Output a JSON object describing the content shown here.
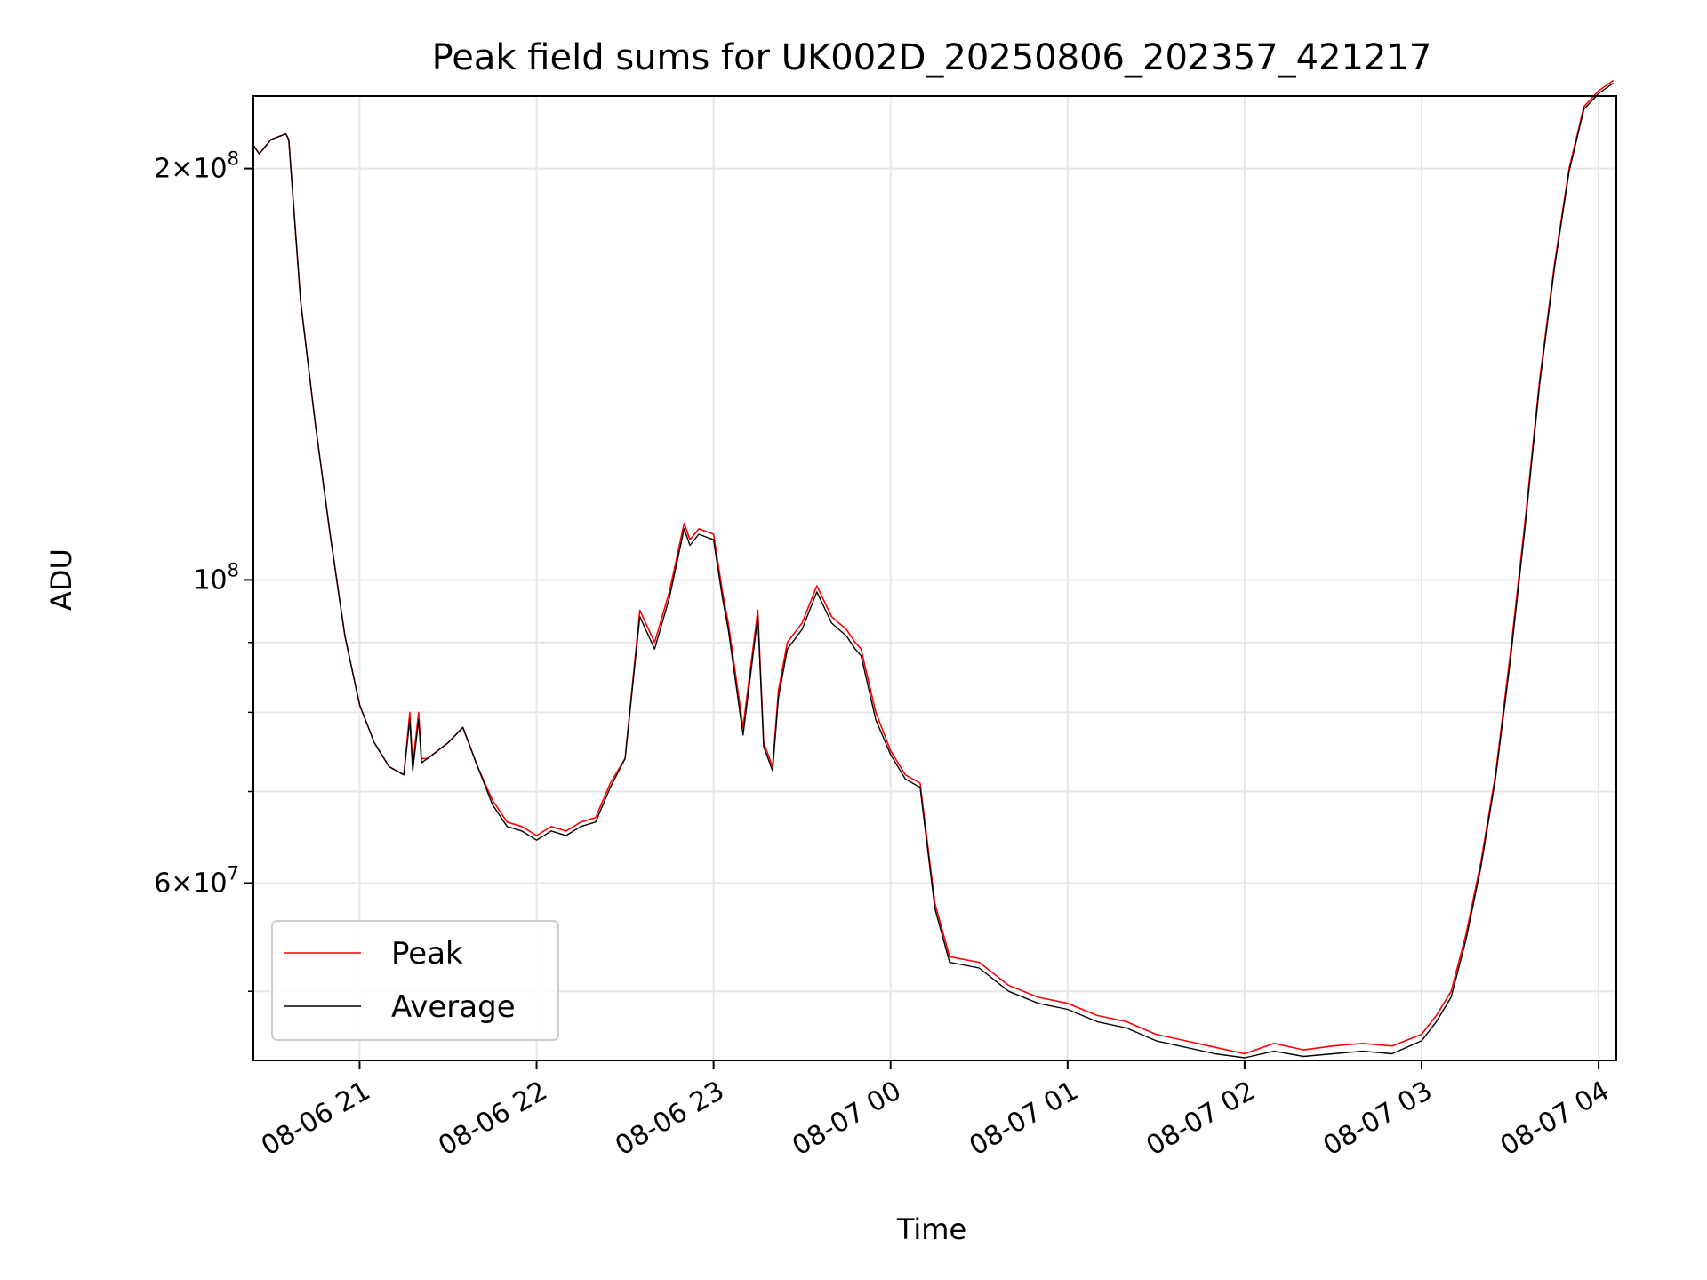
{
  "chart_data": {
    "type": "line",
    "title": "Peak field sums for UK002D_20250806_202357_421217",
    "xlabel": "Time",
    "ylabel": "ADU",
    "y_scale": "log",
    "ylim": [
      44500000,
      226000000
    ],
    "xlim": [
      "2025-08-06 20:24",
      "2025-08-07 04:06"
    ],
    "x_ticks": [
      "08-06 21",
      "08-06 22",
      "08-06 23",
      "08-07 00",
      "08-07 01",
      "08-07 02",
      "08-07 03",
      "08-07 04"
    ],
    "y_ticks_major": [
      {
        "value": 60000000,
        "mantissa": "6",
        "exponent": "7"
      },
      {
        "value": 100000000,
        "mantissa": "",
        "exponent": "8"
      },
      {
        "value": 200000000,
        "mantissa": "2",
        "exponent": "8"
      }
    ],
    "y_ticks_minor": [
      50000000,
      70000000,
      80000000,
      90000000
    ],
    "grid": true,
    "legend_position": "lower-left",
    "series": [
      {
        "name": "Peak",
        "color": "#ff0000",
        "x": [
          "2025-08-06 20:24",
          "2025-08-06 20:26",
          "2025-08-06 20:30",
          "2025-08-06 20:35",
          "2025-08-06 20:36",
          "2025-08-06 20:40",
          "2025-08-06 20:45",
          "2025-08-06 20:50",
          "2025-08-06 20:55",
          "2025-08-06 21:00",
          "2025-08-06 21:05",
          "2025-08-06 21:10",
          "2025-08-06 21:15",
          "2025-08-06 21:17",
          "2025-08-06 21:18",
          "2025-08-06 21:20",
          "2025-08-06 21:21",
          "2025-08-06 21:23",
          "2025-08-06 21:30",
          "2025-08-06 21:35",
          "2025-08-06 21:40",
          "2025-08-06 21:45",
          "2025-08-06 21:50",
          "2025-08-06 21:55",
          "2025-08-06 22:00",
          "2025-08-06 22:05",
          "2025-08-06 22:10",
          "2025-08-06 22:15",
          "2025-08-06 22:20",
          "2025-08-06 22:25",
          "2025-08-06 22:30",
          "2025-08-06 22:35",
          "2025-08-06 22:40",
          "2025-08-06 22:45",
          "2025-08-06 22:50",
          "2025-08-06 22:52",
          "2025-08-06 22:55",
          "2025-08-06 23:00",
          "2025-08-06 23:03",
          "2025-08-06 23:05",
          "2025-08-06 23:10",
          "2025-08-06 23:15",
          "2025-08-06 23:17",
          "2025-08-06 23:20",
          "2025-08-06 23:22",
          "2025-08-06 23:25",
          "2025-08-06 23:30",
          "2025-08-06 23:35",
          "2025-08-06 23:40",
          "2025-08-06 23:45",
          "2025-08-06 23:48",
          "2025-08-06 23:50",
          "2025-08-06 23:55",
          "2025-08-07 00:00",
          "2025-08-07 00:05",
          "2025-08-07 00:10",
          "2025-08-07 00:15",
          "2025-08-07 00:20",
          "2025-08-07 00:30",
          "2025-08-07 00:40",
          "2025-08-07 00:50",
          "2025-08-07 01:00",
          "2025-08-07 01:10",
          "2025-08-07 01:20",
          "2025-08-07 01:30",
          "2025-08-07 01:40",
          "2025-08-07 01:50",
          "2025-08-07 02:00",
          "2025-08-07 02:10",
          "2025-08-07 02:20",
          "2025-08-07 02:30",
          "2025-08-07 02:40",
          "2025-08-07 02:50",
          "2025-08-07 03:00",
          "2025-08-07 03:05",
          "2025-08-07 03:10",
          "2025-08-07 03:15",
          "2025-08-07 03:20",
          "2025-08-07 03:25",
          "2025-08-07 03:30",
          "2025-08-07 03:35",
          "2025-08-07 03:40",
          "2025-08-07 03:45",
          "2025-08-07 03:50",
          "2025-08-07 03:55",
          "2025-08-07 04:00",
          "2025-08-07 04:05"
        ],
        "y": [
          208000000,
          205000000,
          210000000,
          212000000,
          210000000,
          160000000,
          130000000,
          108000000,
          91000000,
          81000000,
          76000000,
          73000000,
          72000000,
          80000000,
          73000000,
          80000000,
          74000000,
          74000000,
          76000000,
          78000000,
          73000000,
          69000000,
          66500000,
          66000000,
          65000000,
          66000000,
          65500000,
          66500000,
          67000000,
          71000000,
          74000000,
          95000000,
          90000000,
          98000000,
          110000000,
          107000000,
          109000000,
          108000000,
          98000000,
          93000000,
          78000000,
          95000000,
          76000000,
          73000000,
          83000000,
          90000000,
          93000000,
          99000000,
          94000000,
          92000000,
          90000000,
          89000000,
          80000000,
          75000000,
          72000000,
          71000000,
          58000000,
          53000000,
          52500000,
          50500000,
          49500000,
          49000000,
          48000000,
          47500000,
          46500000,
          46000000,
          45500000,
          45000000,
          45800000,
          45300000,
          45600000,
          45800000,
          45600000,
          46500000,
          48000000,
          50000000,
          55000000,
          62000000,
          72000000,
          88000000,
          110000000,
          140000000,
          170000000,
          200000000,
          222000000,
          228000000,
          232000000
        ]
      },
      {
        "name": "Average",
        "color": "#000000",
        "x": [
          "2025-08-06 20:24",
          "2025-08-06 20:26",
          "2025-08-06 20:30",
          "2025-08-06 20:35",
          "2025-08-06 20:36",
          "2025-08-06 20:40",
          "2025-08-06 20:45",
          "2025-08-06 20:50",
          "2025-08-06 20:55",
          "2025-08-06 21:00",
          "2025-08-06 21:05",
          "2025-08-06 21:10",
          "2025-08-06 21:15",
          "2025-08-06 21:17",
          "2025-08-06 21:18",
          "2025-08-06 21:20",
          "2025-08-06 21:21",
          "2025-08-06 21:23",
          "2025-08-06 21:30",
          "2025-08-06 21:35",
          "2025-08-06 21:40",
          "2025-08-06 21:45",
          "2025-08-06 21:50",
          "2025-08-06 21:55",
          "2025-08-06 22:00",
          "2025-08-06 22:05",
          "2025-08-06 22:10",
          "2025-08-06 22:15",
          "2025-08-06 22:20",
          "2025-08-06 22:25",
          "2025-08-06 22:30",
          "2025-08-06 22:35",
          "2025-08-06 22:40",
          "2025-08-06 22:45",
          "2025-08-06 22:50",
          "2025-08-06 22:52",
          "2025-08-06 22:55",
          "2025-08-06 23:00",
          "2025-08-06 23:03",
          "2025-08-06 23:05",
          "2025-08-06 23:10",
          "2025-08-06 23:15",
          "2025-08-06 23:17",
          "2025-08-06 23:20",
          "2025-08-06 23:22",
          "2025-08-06 23:25",
          "2025-08-06 23:30",
          "2025-08-06 23:35",
          "2025-08-06 23:40",
          "2025-08-06 23:45",
          "2025-08-06 23:48",
          "2025-08-06 23:50",
          "2025-08-06 23:55",
          "2025-08-07 00:00",
          "2025-08-07 00:05",
          "2025-08-07 00:10",
          "2025-08-07 00:15",
          "2025-08-07 00:20",
          "2025-08-07 00:30",
          "2025-08-07 00:40",
          "2025-08-07 00:50",
          "2025-08-07 01:00",
          "2025-08-07 01:10",
          "2025-08-07 01:20",
          "2025-08-07 01:30",
          "2025-08-07 01:40",
          "2025-08-07 01:50",
          "2025-08-07 02:00",
          "2025-08-07 02:10",
          "2025-08-07 02:20",
          "2025-08-07 02:30",
          "2025-08-07 02:40",
          "2025-08-07 02:50",
          "2025-08-07 03:00",
          "2025-08-07 03:05",
          "2025-08-07 03:10",
          "2025-08-07 03:15",
          "2025-08-07 03:20",
          "2025-08-07 03:25",
          "2025-08-07 03:30",
          "2025-08-07 03:35",
          "2025-08-07 03:40",
          "2025-08-07 03:45",
          "2025-08-07 03:50",
          "2025-08-07 03:55",
          "2025-08-07 04:00",
          "2025-08-07 04:05"
        ],
        "y": [
          208000000,
          205000000,
          210000000,
          212000000,
          210000000,
          160000000,
          130000000,
          108000000,
          91000000,
          81000000,
          76000000,
          73000000,
          72000000,
          79000000,
          72500000,
          79000000,
          73500000,
          74000000,
          76000000,
          78000000,
          73000000,
          68500000,
          66000000,
          65500000,
          64500000,
          65500000,
          65000000,
          66000000,
          66500000,
          70500000,
          74000000,
          94000000,
          89000000,
          97000000,
          109000000,
          106000000,
          108000000,
          107000000,
          97000000,
          92000000,
          77000000,
          94000000,
          75500000,
          72500000,
          82000000,
          89000000,
          92000000,
          98000000,
          93000000,
          91000000,
          89000000,
          88000000,
          79000000,
          74500000,
          71500000,
          70500000,
          57500000,
          52500000,
          52000000,
          50000000,
          49000000,
          48500000,
          47500000,
          47000000,
          46000000,
          45500000,
          45000000,
          44700000,
          45200000,
          44800000,
          45000000,
          45200000,
          45000000,
          46000000,
          47500000,
          49500000,
          54500000,
          61500000,
          71500000,
          87000000,
          109000000,
          139000000,
          169000000,
          199000000,
          221000000,
          227000000,
          231000000
        ]
      }
    ]
  }
}
